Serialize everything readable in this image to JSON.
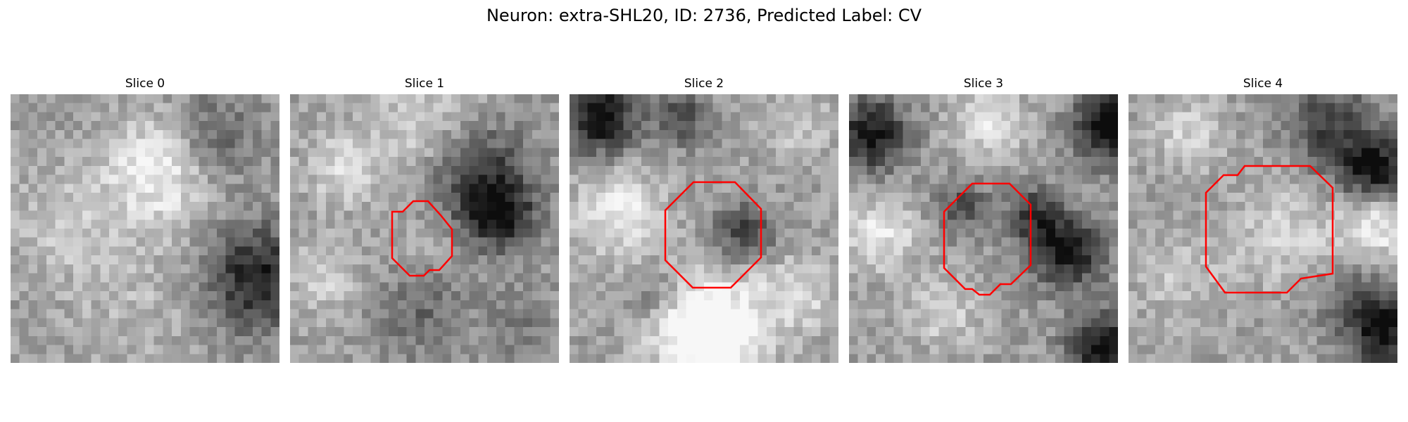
{
  "figure": {
    "title": "Neuron: extra-SHL20, ID: 2736, Predicted Label: CV",
    "outline_color": "#ff0000"
  },
  "panels": [
    {
      "title": "Slice 0",
      "has_outline": false,
      "contrast": "light"
    },
    {
      "title": "Slice 1",
      "has_outline": true,
      "contrast": "mixed"
    },
    {
      "title": "Slice 2",
      "has_outline": true,
      "contrast": "mixed"
    },
    {
      "title": "Slice 3",
      "has_outline": true,
      "contrast": "dark"
    },
    {
      "title": "Slice 4",
      "has_outline": true,
      "contrast": "mixed"
    }
  ]
}
